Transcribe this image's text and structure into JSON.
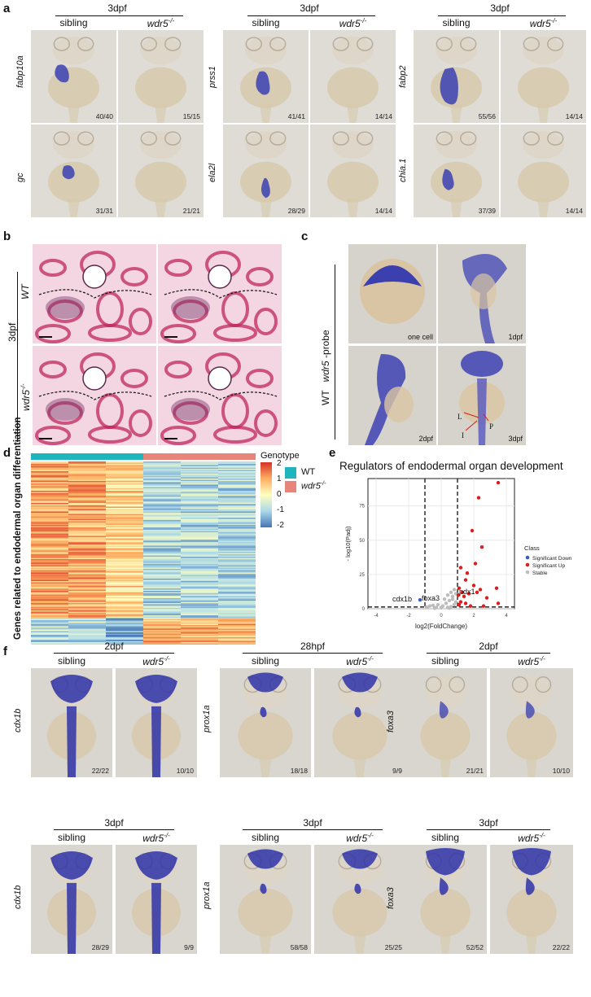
{
  "panel_labels": {
    "a": "a",
    "b": "b",
    "c": "c",
    "d": "d",
    "e": "e",
    "f": "f"
  },
  "panel_a": {
    "groups": [
      {
        "stage": "3dpf",
        "left": "sibling",
        "right": "wdr5",
        "right_sup": "-/-",
        "genes": [
          "fabp10a",
          "gc"
        ],
        "counts": [
          [
            "40/40",
            "15/15"
          ],
          [
            "31/31",
            "21/21"
          ]
        ]
      },
      {
        "stage": "3dpf",
        "left": "sibling",
        "right": "wdr5",
        "right_sup": "-/-",
        "genes": [
          "prss1",
          "ela2l"
        ],
        "counts": [
          [
            "41/41",
            "14/14"
          ],
          [
            "28/29",
            "14/14"
          ]
        ]
      },
      {
        "stage": "3dpf",
        "left": "sibling",
        "right": "wdr5",
        "right_sup": "-/-",
        "genes": [
          "fabp2",
          "chia.1"
        ],
        "counts": [
          [
            "55/56",
            "14/14"
          ],
          [
            "37/39",
            "14/14"
          ]
        ]
      }
    ]
  },
  "panel_b": {
    "stage": "3dpf",
    "row1": "WT",
    "row2": "wdr5",
    "row2_sup": "-/-"
  },
  "panel_c": {
    "side_wt": "WT",
    "side_probe": "wdr5",
    "side_probe_suffix": " -probe",
    "tiles": [
      "one cell",
      "1dpf",
      "2dpf",
      "3dpf"
    ],
    "annot": {
      "L": "L",
      "P": "P",
      "I": "I"
    }
  },
  "panel_d": {
    "ylabel": "Genes related to endodermal organ differentiation",
    "legend_title": "Genotype",
    "legend_items": [
      {
        "label": "WT",
        "color": "#1fb5bd"
      },
      {
        "label": "wdr5",
        "sup": "-/-",
        "color": "#e8857b"
      }
    ],
    "scale_ticks": [
      "2",
      "1",
      "0",
      "-1",
      "-2"
    ],
    "scale_colors": [
      "#d73027",
      "#fdae61",
      "#ffffbf",
      "#abd9e9",
      "#4575b4"
    ]
  },
  "chart_data": {
    "type": "scatter",
    "title": "Regulators of endodermal organ development",
    "xlabel": "log2(FoldChange)",
    "ylabel": "- log10(Padj)",
    "xlim": [
      -4.5,
      4.5
    ],
    "ylim": [
      0,
      95
    ],
    "xticks": [
      "-4",
      "-2",
      "0",
      "2",
      "4"
    ],
    "yticks": [
      "0",
      "25",
      "50",
      "75"
    ],
    "grid": true,
    "legend_title": "Class",
    "legend_position": "right",
    "series": [
      {
        "name": "Significant Down",
        "color": "#3a5bbf",
        "points": [
          [
            -1.3,
            6.5
          ]
        ]
      },
      {
        "name": "Significant Up",
        "color": "#e01b1b",
        "points": [
          [
            3.5,
            92
          ],
          [
            2.3,
            81
          ],
          [
            1.9,
            57
          ],
          [
            2.5,
            45
          ],
          [
            2.1,
            33
          ],
          [
            1.2,
            30
          ],
          [
            3.4,
            15
          ],
          [
            1.6,
            26
          ],
          [
            1.5,
            21
          ],
          [
            2.0,
            17
          ],
          [
            1.1,
            15
          ],
          [
            2.4,
            14
          ],
          [
            1.3,
            12
          ],
          [
            1.7,
            11
          ],
          [
            2.2,
            12
          ],
          [
            1.05,
            10
          ],
          [
            1.4,
            9
          ],
          [
            2.8,
            8
          ],
          [
            1.2,
            5
          ],
          [
            1.5,
            4
          ],
          [
            3.5,
            4
          ],
          [
            1.1,
            3
          ],
          [
            2.6,
            2
          ],
          [
            1.8,
            2
          ]
        ]
      },
      {
        "name": "Stable",
        "color": "#bdbdbd",
        "points": [
          [
            0.8,
            14
          ],
          [
            0.6,
            12
          ],
          [
            0.4,
            10
          ],
          [
            0.7,
            9
          ],
          [
            0.2,
            7
          ],
          [
            0.5,
            6
          ],
          [
            0.9,
            5
          ],
          [
            0.3,
            4
          ],
          [
            -0.2,
            3
          ],
          [
            -0.5,
            2.5
          ],
          [
            -0.7,
            2
          ],
          [
            0.1,
            2
          ],
          [
            0.6,
            1.5
          ],
          [
            -0.3,
            1
          ],
          [
            0.4,
            1
          ],
          [
            0.8,
            3
          ],
          [
            -0.9,
            1.2
          ],
          [
            0.0,
            0.8
          ],
          [
            0.5,
            0.5
          ],
          [
            -0.4,
            0.4
          ],
          [
            0.7,
            7
          ],
          [
            0.9,
            11
          ]
        ]
      }
    ],
    "annotations": [
      "pdx1",
      "foxa3",
      "cdx1b"
    ]
  },
  "panel_f": {
    "groups": [
      {
        "stage": "2dpf",
        "gene": "cdx1b",
        "left": "sibling",
        "right": "wdr5",
        "right_sup": "-/-",
        "counts": [
          "22/22",
          "10/10"
        ]
      },
      {
        "stage": "28hpf",
        "gene": "prox1a",
        "left": "sibling",
        "right": "wdr5",
        "right_sup": "-/-",
        "counts": [
          "18/18",
          "9/9"
        ]
      },
      {
        "stage": "2dpf",
        "gene": "foxa3",
        "left": "sibling",
        "right": "wdr5",
        "right_sup": "-/-",
        "counts": [
          "21/21",
          "10/10"
        ]
      },
      {
        "stage": "3dpf",
        "gene": "cdx1b",
        "left": "sibling",
        "right": "wdr5",
        "right_sup": "-/-",
        "counts": [
          "28/29",
          "9/9"
        ]
      },
      {
        "stage": "3dpf",
        "gene": "prox1a",
        "left": "sibling",
        "right": "wdr5",
        "right_sup": "-/-",
        "counts": [
          "58/58",
          "25/25"
        ]
      },
      {
        "stage": "3dpf",
        "gene": "foxa3",
        "left": "sibling",
        "right": "wdr5",
        "right_sup": "-/-",
        "counts": [
          "52/52",
          "22/22"
        ]
      }
    ]
  }
}
